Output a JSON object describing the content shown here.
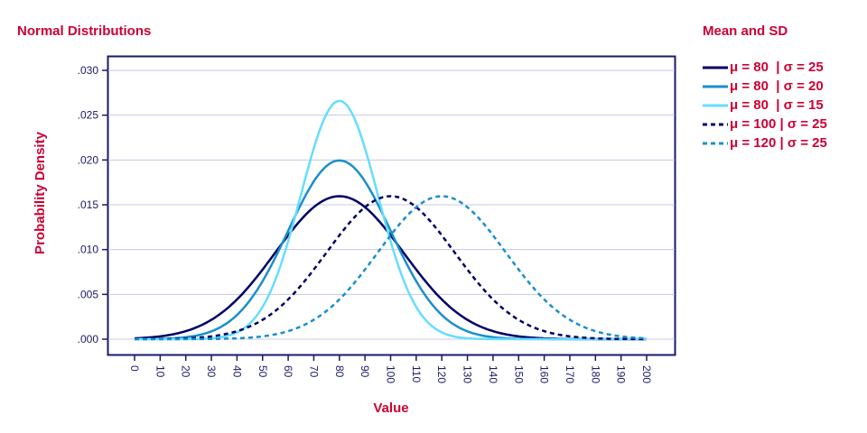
{
  "chart_data": {
    "type": "line",
    "title": "Normal Distributions",
    "xlabel": "Value",
    "ylabel": "Probability Density",
    "xlim": [
      0,
      200
    ],
    "ylim": [
      0,
      0.03
    ],
    "x_ticks": [
      "0",
      "10",
      "20",
      "30",
      "40",
      "50",
      "60",
      "70",
      "80",
      "90",
      "100",
      "110",
      "120",
      "130",
      "140",
      "150",
      "160",
      "170",
      "180",
      "190",
      "200"
    ],
    "y_ticks": [
      ".000",
      ".005",
      ".010",
      ".015",
      ".020",
      ".025",
      ".030"
    ],
    "grid": "horizontal",
    "legend_title": "Mean and SD",
    "legend_placement": "right",
    "series": [
      {
        "name": "μ = 80  | σ = 25",
        "mean": 80,
        "sd": 25,
        "color": "#000066",
        "dash": false
      },
      {
        "name": "μ = 80  | σ = 20",
        "mean": 80,
        "sd": 20,
        "color": "#1a8fcc",
        "dash": false
      },
      {
        "name": "μ = 80  | σ = 15",
        "mean": 80,
        "sd": 15,
        "color": "#66ddff",
        "dash": false
      },
      {
        "name": "μ = 100 | σ = 25",
        "mean": 100,
        "sd": 25,
        "color": "#000066",
        "dash": true
      },
      {
        "name": "μ = 120 | σ = 25",
        "mean": 120,
        "sd": 25,
        "color": "#1a8fcc",
        "dash": true
      }
    ]
  }
}
